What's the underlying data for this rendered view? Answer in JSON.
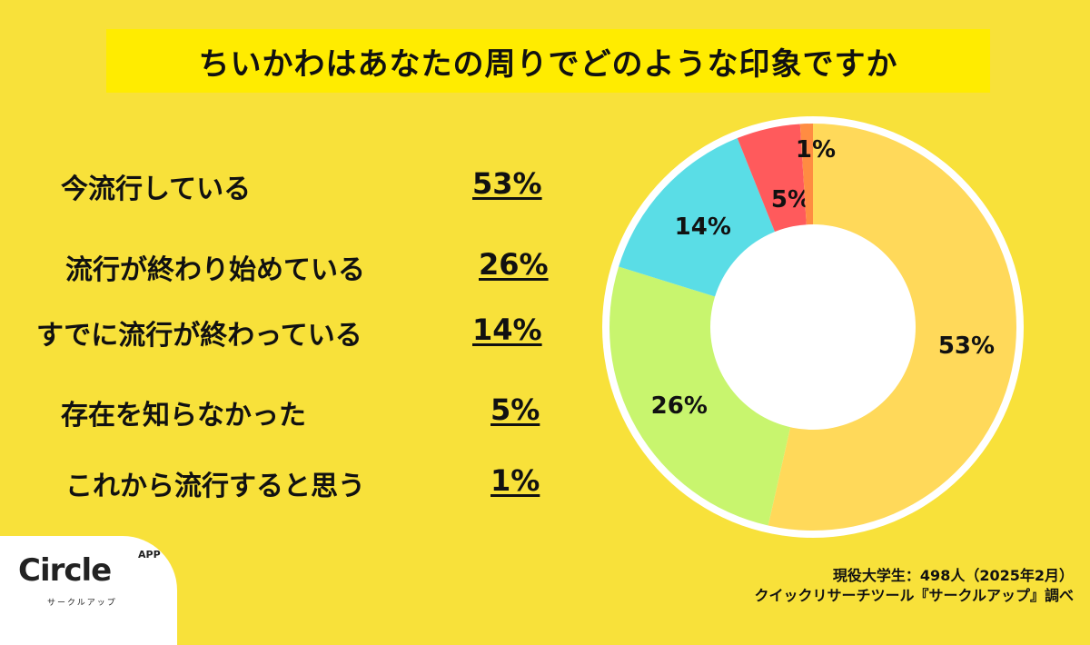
{
  "title": "ちいかわはあなたの周りでどのような印象ですか",
  "chart_data": {
    "type": "pie",
    "style": "donut",
    "title": "ちいかわはあなたの周りでどのような印象ですか",
    "categories": [
      "今流行している",
      "流行が終わり始めている",
      "すでに流行が終わっている",
      "存在を知らなかった",
      "これから流行すると思う"
    ],
    "values": [
      53,
      26,
      14,
      5,
      1
    ],
    "data_labels": [
      "53%",
      "26%",
      "14%",
      "5%",
      "1%"
    ],
    "colors": [
      "#FFD95A",
      "#C8F56E",
      "#5ADDE6",
      "#FF5A5C",
      "#FF8C42"
    ],
    "start": "top",
    "direction": "clockwise"
  },
  "footer": {
    "line1": "現役大学生：498人（2025年2月）",
    "line2": "クイックリサーチツール『サークルアップ』調べ"
  },
  "logo": {
    "word": "Circle",
    "app": "APP",
    "kana": "サークルアップ"
  }
}
